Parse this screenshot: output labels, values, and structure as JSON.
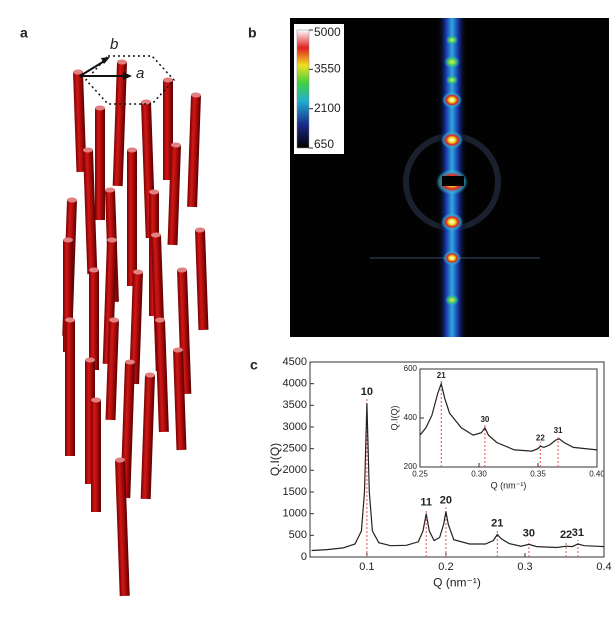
{
  "panels": {
    "a": "a",
    "b": "b",
    "c": "c"
  },
  "lattice": {
    "vector_b": "b",
    "vector_a": "a"
  },
  "colorbar": {
    "ticks": [
      5000,
      3550,
      2100,
      650
    ]
  },
  "chart_data": [
    {
      "type": "line",
      "ylabel": "Q.I(Q)",
      "xlabel": "Q (nm⁻¹)",
      "x": [
        0.03,
        0.05,
        0.07,
        0.085,
        0.093,
        0.097,
        0.1,
        0.103,
        0.107,
        0.115,
        0.13,
        0.15,
        0.165,
        0.171,
        0.175,
        0.179,
        0.185,
        0.192,
        0.197,
        0.2,
        0.203,
        0.21,
        0.23,
        0.25,
        0.26,
        0.265,
        0.27,
        0.28,
        0.295,
        0.305,
        0.315,
        0.34,
        0.352,
        0.36,
        0.367,
        0.375,
        0.39,
        0.4
      ],
      "values": [
        150,
        170,
        210,
        300,
        600,
        1500,
        3550,
        1500,
        600,
        330,
        260,
        270,
        350,
        600,
        1000,
        600,
        380,
        450,
        750,
        1050,
        750,
        400,
        300,
        300,
        380,
        520,
        420,
        310,
        250,
        290,
        240,
        220,
        250,
        240,
        300,
        260,
        250,
        240
      ],
      "color": "#222222",
      "peaks": [
        {
          "label": "10",
          "x": 0.1
        },
        {
          "label": "11",
          "x": 0.175
        },
        {
          "label": "20",
          "x": 0.2
        },
        {
          "label": "21",
          "x": 0.265
        },
        {
          "label": "30",
          "x": 0.305
        },
        {
          "label": "22",
          "x": 0.352
        },
        {
          "label": "31",
          "x": 0.367
        }
      ],
      "peak_color": "#e05050",
      "xlim": [
        0.028,
        0.4
      ],
      "xticks": [
        0.1,
        0.2,
        0.3,
        0.4
      ],
      "ylim": [
        0,
        4500
      ],
      "yticks": [
        0,
        500,
        1000,
        1500,
        2000,
        2500,
        3000,
        3500,
        4000,
        4500
      ]
    },
    {
      "type": "line",
      "ylabel": "Q.I(Q)",
      "xlabel": "Q (nm⁻¹)",
      "x": [
        0.25,
        0.255,
        0.26,
        0.265,
        0.268,
        0.271,
        0.275,
        0.285,
        0.295,
        0.302,
        0.305,
        0.308,
        0.315,
        0.33,
        0.345,
        0.35,
        0.352,
        0.355,
        0.36,
        0.365,
        0.368,
        0.372,
        0.38,
        0.39,
        0.4
      ],
      "values": [
        330,
        360,
        410,
        500,
        540,
        480,
        420,
        360,
        330,
        340,
        360,
        330,
        300,
        270,
        265,
        275,
        285,
        280,
        290,
        310,
        315,
        300,
        280,
        275,
        270
      ],
      "color": "#222222",
      "peaks": [
        {
          "label": "21",
          "x": 0.268
        },
        {
          "label": "30",
          "x": 0.305
        },
        {
          "label": "22",
          "x": 0.352
        },
        {
          "label": "31",
          "x": 0.367
        }
      ],
      "peak_color": "#e05050",
      "xlim": [
        0.25,
        0.4
      ],
      "xticks": [
        0.25,
        {
          "value": 0.3,
          "label": "0.30"
        },
        0.35,
        {
          "value": 0.4,
          "label": "0.40"
        }
      ],
      "ylim": [
        200,
        600
      ],
      "yticks": [
        200,
        400,
        600
      ]
    }
  ]
}
